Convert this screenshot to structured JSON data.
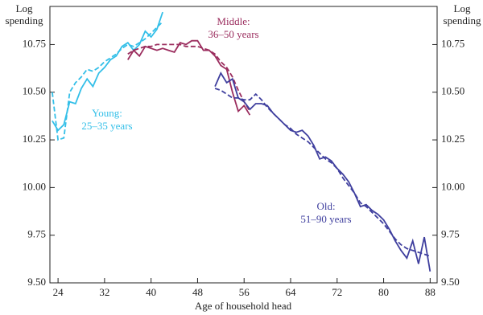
{
  "chart_data": {
    "type": "line",
    "xlabel": "Age of household head",
    "ylabel": [
      "Log",
      "spending"
    ],
    "y2label": [
      "Log",
      "spending"
    ],
    "xlim": [
      22.6,
      89.2
    ],
    "xticks": [
      24,
      32,
      40,
      48,
      56,
      64,
      72,
      80,
      88
    ],
    "ylim": [
      9.5,
      10.95
    ],
    "yticks": [
      {
        "value": 9.5,
        "label": "9.50"
      },
      {
        "value": 9.75,
        "label": "9.75"
      },
      {
        "value": 10.0,
        "label": "10.00"
      },
      {
        "value": 10.25,
        "label": "10.25"
      },
      {
        "value": 10.5,
        "label": "10.50"
      },
      {
        "value": 10.75,
        "label": "10.75"
      }
    ],
    "y2lim": [
      9.5,
      10.95
    ],
    "y2ticks": [
      {
        "value": 9.5,
        "label": "9.50"
      },
      {
        "value": 9.75,
        "label": "9.75"
      },
      {
        "value": 10.0,
        "label": "10.00"
      },
      {
        "value": 10.25,
        "label": "10.25"
      },
      {
        "value": 10.5,
        "label": "10.50"
      },
      {
        "value": 10.75,
        "label": "10.75"
      }
    ],
    "series": [
      {
        "color": "#33bfe8",
        "dashed": false,
        "x": [
          23,
          24,
          25,
          26,
          27,
          28,
          29,
          30,
          31,
          32,
          33,
          34,
          35,
          36,
          37,
          38,
          39,
          40,
          41,
          42
        ],
        "values": [
          10.35,
          10.3,
          10.33,
          10.45,
          10.44,
          10.52,
          10.57,
          10.53,
          10.6,
          10.63,
          10.67,
          10.69,
          10.74,
          10.76,
          10.72,
          10.75,
          10.82,
          10.79,
          10.83,
          10.92
        ]
      },
      {
        "color": "#33bfe8",
        "dashed": true,
        "x": [
          23,
          24,
          25,
          26,
          27,
          28,
          29,
          30,
          31,
          32,
          33,
          34,
          35,
          36,
          37,
          38,
          39,
          40,
          41,
          42
        ],
        "values": [
          10.5,
          10.25,
          10.26,
          10.5,
          10.55,
          10.58,
          10.62,
          10.61,
          10.63,
          10.66,
          10.68,
          10.7,
          10.73,
          10.75,
          10.74,
          10.76,
          10.78,
          10.81,
          10.84,
          10.87
        ]
      },
      {
        "color": "#9b2d5e",
        "dashed": false,
        "x": [
          36,
          37,
          38,
          39,
          40,
          41,
          42,
          43,
          44,
          45,
          46,
          47,
          48,
          49,
          50,
          51,
          52,
          53,
          54,
          55,
          56,
          57
        ],
        "values": [
          10.67,
          10.72,
          10.69,
          10.74,
          10.73,
          10.72,
          10.73,
          10.72,
          10.71,
          10.76,
          10.75,
          10.77,
          10.77,
          10.72,
          10.72,
          10.69,
          10.64,
          10.62,
          10.5,
          10.4,
          10.43,
          10.38
        ]
      },
      {
        "color": "#9b2d5e",
        "dashed": true,
        "x": [
          36,
          37,
          38,
          39,
          40,
          41,
          42,
          43,
          44,
          45,
          46,
          47,
          48,
          49,
          50,
          51,
          52,
          53,
          54,
          55,
          56,
          57
        ],
        "values": [
          10.7,
          10.72,
          10.73,
          10.74,
          10.74,
          10.75,
          10.75,
          10.75,
          10.75,
          10.75,
          10.74,
          10.74,
          10.74,
          10.73,
          10.72,
          10.7,
          10.66,
          10.63,
          10.58,
          10.51,
          10.45,
          10.4
        ]
      },
      {
        "color": "#3f3f9e",
        "dashed": false,
        "x": [
          51,
          52,
          53,
          54,
          55,
          56,
          57,
          58,
          59,
          60,
          61,
          62,
          63,
          64,
          65,
          66,
          67,
          68,
          69,
          70,
          71,
          72,
          73,
          74,
          75,
          76,
          77,
          78,
          79,
          80,
          81,
          82,
          83,
          84,
          85,
          86,
          87,
          88
        ],
        "values": [
          10.53,
          10.6,
          10.55,
          10.57,
          10.47,
          10.45,
          10.41,
          10.44,
          10.44,
          10.43,
          10.39,
          10.36,
          10.33,
          10.3,
          10.29,
          10.3,
          10.27,
          10.22,
          10.15,
          10.16,
          10.14,
          10.1,
          10.07,
          10.03,
          9.97,
          9.9,
          9.91,
          9.88,
          9.86,
          9.83,
          9.78,
          9.72,
          9.67,
          9.63,
          9.72,
          9.6,
          9.74,
          9.56
        ]
      },
      {
        "color": "#3f3f9e",
        "dashed": true,
        "x": [
          51,
          52,
          53,
          54,
          55,
          56,
          57,
          58,
          59,
          60,
          61,
          62,
          63,
          64,
          65,
          66,
          67,
          68,
          69,
          70,
          71,
          72,
          73,
          74,
          75,
          76,
          77,
          78,
          79,
          80,
          81,
          82,
          83,
          84,
          85,
          86,
          87,
          88
        ],
        "values": [
          10.52,
          10.51,
          10.49,
          10.47,
          10.47,
          10.46,
          10.46,
          10.49,
          10.46,
          10.42,
          10.39,
          10.36,
          10.33,
          10.31,
          10.28,
          10.26,
          10.24,
          10.21,
          10.18,
          10.15,
          10.13,
          10.1,
          10.05,
          10.01,
          9.97,
          9.92,
          9.9,
          9.87,
          9.84,
          9.81,
          9.77,
          9.73,
          9.7,
          9.68,
          9.67,
          9.66,
          9.65,
          9.64
        ]
      }
    ],
    "annotations": [
      {
        "lines": [
          "Young:",
          "25–35 years"
        ],
        "color": "#33bfe8"
      },
      {
        "lines": [
          "Middle:",
          "36–50 years"
        ],
        "color": "#9b2d5e"
      },
      {
        "lines": [
          "Old:",
          "51–90 years"
        ],
        "color": "#3f3f9e"
      }
    ]
  }
}
